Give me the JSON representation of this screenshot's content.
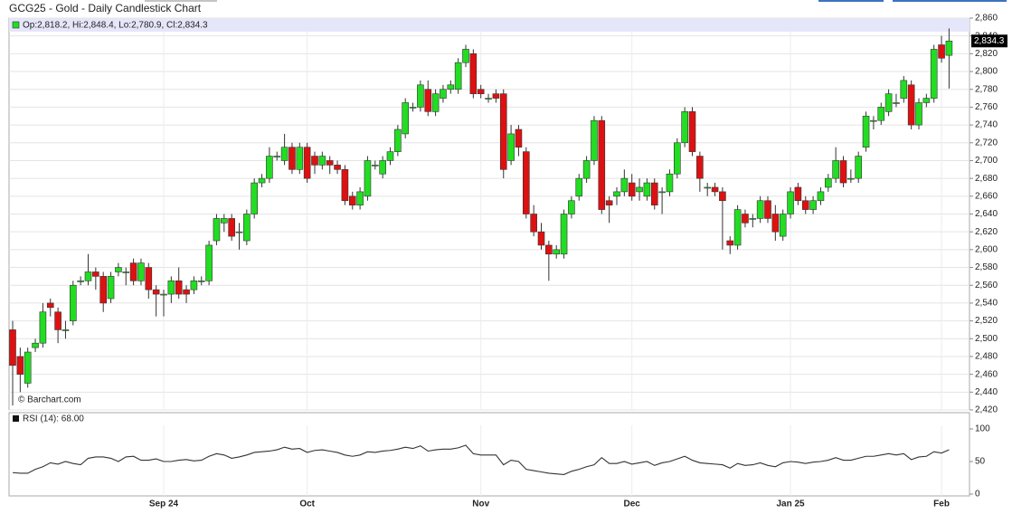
{
  "title": "GCG25 - Gold - Daily Candlestick Chart",
  "chart_data": [
    {
      "type": "candlestick",
      "legend": "Op:2,818.2, Hi:2,848.4, Lo:2,780.9, Cl:2,834.3",
      "last_label": "2,834.3",
      "last_value": 2834.3,
      "watermark": "© Barchart.com",
      "up_color": "#22dd22",
      "down_color": "#dd1111",
      "open": [
        2510,
        2480,
        2450,
        2490,
        2495,
        2540,
        2530,
        2510,
        2520,
        2565,
        2565,
        2575,
        2570,
        2545,
        2575,
        2575,
        2585,
        2565,
        2580,
        2555,
        2550,
        2550,
        2565,
        2555,
        2555,
        2565,
        2565,
        2610,
        2630,
        2635,
        2620,
        2610,
        2640,
        2675,
        2680,
        2705,
        2700,
        2715,
        2690,
        2715,
        2705,
        2695,
        2700,
        2695,
        2690,
        2660,
        2650,
        2660,
        2695,
        2685,
        2700,
        2710,
        2730,
        2760,
        2760,
        2780,
        2755,
        2770,
        2780,
        2780,
        2810,
        2820,
        2780,
        2770,
        2775,
        2775,
        2700,
        2735,
        2710,
        2640,
        2620,
        2605,
        2595,
        2595,
        2640,
        2660,
        2680,
        2700,
        2745,
        2655,
        2660,
        2665,
        2675,
        2665,
        2660,
        2675,
        2665,
        2665,
        2685,
        2720,
        2755,
        2705,
        2670,
        2670,
        2665,
        2610,
        2605,
        2640,
        2635,
        2635,
        2655,
        2640,
        2615,
        2640,
        2670,
        2655,
        2645,
        2655,
        2670,
        2680,
        2700,
        2680,
        2680,
        2715,
        2745,
        2745,
        2755,
        2765,
        2770,
        2785,
        2740,
        2765,
        2770,
        2830,
        2818.2
      ],
      "high": [
        2520,
        2490,
        2490,
        2500,
        2540,
        2545,
        2535,
        2520,
        2565,
        2570,
        2595,
        2580,
        2575,
        2575,
        2585,
        2580,
        2590,
        2590,
        2585,
        2560,
        2555,
        2570,
        2580,
        2560,
        2570,
        2570,
        2610,
        2640,
        2640,
        2640,
        2630,
        2645,
        2680,
        2685,
        2715,
        2710,
        2730,
        2720,
        2720,
        2720,
        2710,
        2710,
        2705,
        2700,
        2695,
        2665,
        2670,
        2705,
        2700,
        2705,
        2715,
        2740,
        2770,
        2765,
        2790,
        2790,
        2780,
        2785,
        2790,
        2815,
        2830,
        2825,
        2785,
        2775,
        2780,
        2780,
        2740,
        2740,
        2715,
        2650,
        2630,
        2610,
        2605,
        2645,
        2660,
        2685,
        2705,
        2750,
        2750,
        2660,
        2670,
        2690,
        2685,
        2680,
        2680,
        2680,
        2670,
        2690,
        2725,
        2760,
        2760,
        2710,
        2675,
        2675,
        2670,
        2615,
        2650,
        2645,
        2640,
        2660,
        2660,
        2650,
        2645,
        2670,
        2675,
        2660,
        2660,
        2670,
        2685,
        2715,
        2705,
        2690,
        2710,
        2755,
        2750,
        2765,
        2780,
        2775,
        2795,
        2790,
        2770,
        2775,
        2830,
        2840,
        2848.4
      ],
      "low": [
        2425,
        2440,
        2445,
        2485,
        2490,
        2525,
        2495,
        2500,
        2515,
        2560,
        2560,
        2555,
        2530,
        2540,
        2570,
        2560,
        2560,
        2560,
        2545,
        2525,
        2525,
        2540,
        2545,
        2540,
        2550,
        2560,
        2560,
        2605,
        2620,
        2610,
        2600,
        2605,
        2635,
        2670,
        2675,
        2700,
        2695,
        2685,
        2685,
        2675,
        2685,
        2690,
        2685,
        2685,
        2650,
        2645,
        2645,
        2655,
        2690,
        2680,
        2695,
        2705,
        2725,
        2755,
        2755,
        2750,
        2750,
        2765,
        2775,
        2775,
        2805,
        2770,
        2770,
        2765,
        2765,
        2680,
        2695,
        2705,
        2635,
        2615,
        2600,
        2565,
        2590,
        2590,
        2635,
        2655,
        2675,
        2695,
        2640,
        2630,
        2650,
        2660,
        2655,
        2655,
        2655,
        2645,
        2640,
        2660,
        2680,
        2715,
        2705,
        2665,
        2660,
        2660,
        2600,
        2595,
        2600,
        2625,
        2625,
        2630,
        2630,
        2610,
        2610,
        2635,
        2650,
        2640,
        2640,
        2650,
        2665,
        2675,
        2670,
        2675,
        2675,
        2710,
        2735,
        2740,
        2750,
        2760,
        2765,
        2735,
        2735,
        2760,
        2765,
        2810,
        2780.9
      ],
      "close": [
        2470,
        2460,
        2485,
        2495,
        2530,
        2535,
        2510,
        2510,
        2560,
        2565,
        2575,
        2570,
        2540,
        2570,
        2580,
        2575,
        2565,
        2585,
        2555,
        2550,
        2550,
        2565,
        2550,
        2550,
        2565,
        2565,
        2605,
        2635,
        2635,
        2615,
        2620,
        2640,
        2675,
        2680,
        2705,
        2705,
        2715,
        2690,
        2715,
        2680,
        2695,
        2705,
        2695,
        2690,
        2655,
        2650,
        2665,
        2700,
        2695,
        2700,
        2710,
        2735,
        2765,
        2760,
        2785,
        2755,
        2775,
        2780,
        2785,
        2810,
        2825,
        2775,
        2775,
        2770,
        2770,
        2690,
        2730,
        2715,
        2640,
        2620,
        2605,
        2595,
        2600,
        2640,
        2655,
        2680,
        2700,
        2745,
        2645,
        2650,
        2665,
        2680,
        2660,
        2670,
        2675,
        2650,
        2665,
        2685,
        2720,
        2755,
        2710,
        2680,
        2670,
        2665,
        2655,
        2605,
        2645,
        2630,
        2635,
        2655,
        2635,
        2620,
        2640,
        2665,
        2655,
        2645,
        2655,
        2665,
        2680,
        2700,
        2675,
        2680,
        2705,
        2750,
        2745,
        2760,
        2775,
        2765,
        2790,
        2740,
        2765,
        2770,
        2825,
        2815,
        2834.3
      ],
      "ylim": [
        2420,
        2860
      ],
      "yticks": [
        {
          "value": 2420,
          "label": "2,420"
        },
        {
          "value": 2440,
          "label": "2,440"
        },
        {
          "value": 2460,
          "label": "2,460"
        },
        {
          "value": 2480,
          "label": "2,480"
        },
        {
          "value": 2500,
          "label": "2,500"
        },
        {
          "value": 2520,
          "label": "2,520"
        },
        {
          "value": 2540,
          "label": "2,540"
        },
        {
          "value": 2560,
          "label": "2,560"
        },
        {
          "value": 2580,
          "label": "2,580"
        },
        {
          "value": 2600,
          "label": "2,600"
        },
        {
          "value": 2620,
          "label": "2,620"
        },
        {
          "value": 2640,
          "label": "2,640"
        },
        {
          "value": 2660,
          "label": "2,660"
        },
        {
          "value": 2680,
          "label": "2,680"
        },
        {
          "value": 2700,
          "label": "2,700"
        },
        {
          "value": 2720,
          "label": "2,720"
        },
        {
          "value": 2740,
          "label": "2,740"
        },
        {
          "value": 2760,
          "label": "2,760"
        },
        {
          "value": 2780,
          "label": "2,780"
        },
        {
          "value": 2800,
          "label": "2,800"
        },
        {
          "value": 2820,
          "label": "2,820"
        },
        {
          "value": 2840,
          "label": "2,840"
        },
        {
          "value": 2860,
          "label": "2,860"
        }
      ],
      "xticks": [
        {
          "value": 20,
          "label": "Sep 24"
        },
        {
          "value": 39,
          "label": "Oct"
        },
        {
          "value": 62,
          "label": "Nov"
        },
        {
          "value": 82,
          "label": "Dec"
        },
        {
          "value": 103,
          "label": "Jan 25"
        },
        {
          "value": 123,
          "label": "Feb"
        }
      ],
      "grid": true
    },
    {
      "type": "line",
      "label": "RSI (14): 68.00",
      "color": "#333333",
      "values": [
        33,
        32,
        32,
        38,
        42,
        48,
        46,
        50,
        47,
        45,
        55,
        57,
        57,
        55,
        50,
        57,
        58,
        52,
        52,
        54,
        50,
        50,
        52,
        53,
        51,
        52,
        58,
        62,
        60,
        55,
        57,
        60,
        64,
        65,
        66,
        68,
        72,
        69,
        70,
        64,
        67,
        68,
        66,
        64,
        60,
        58,
        60,
        65,
        64,
        66,
        67,
        69,
        72,
        70,
        74,
        66,
        68,
        69,
        69,
        71,
        75,
        62,
        60,
        60,
        60,
        45,
        52,
        50,
        38,
        36,
        34,
        32,
        31,
        30,
        35,
        38,
        42,
        45,
        56,
        47,
        47,
        50,
        46,
        48,
        50,
        44,
        48,
        50,
        54,
        58,
        52,
        48,
        47,
        46,
        45,
        40,
        47,
        44,
        45,
        48,
        44,
        42,
        48,
        50,
        49,
        47,
        49,
        50,
        52,
        56,
        52,
        52,
        55,
        58,
        58,
        60,
        62,
        60,
        62,
        53,
        57,
        58,
        65,
        63,
        68
      ],
      "ylim": [
        0,
        100
      ],
      "yticks": [
        0,
        50,
        100
      ],
      "grid": true
    }
  ]
}
